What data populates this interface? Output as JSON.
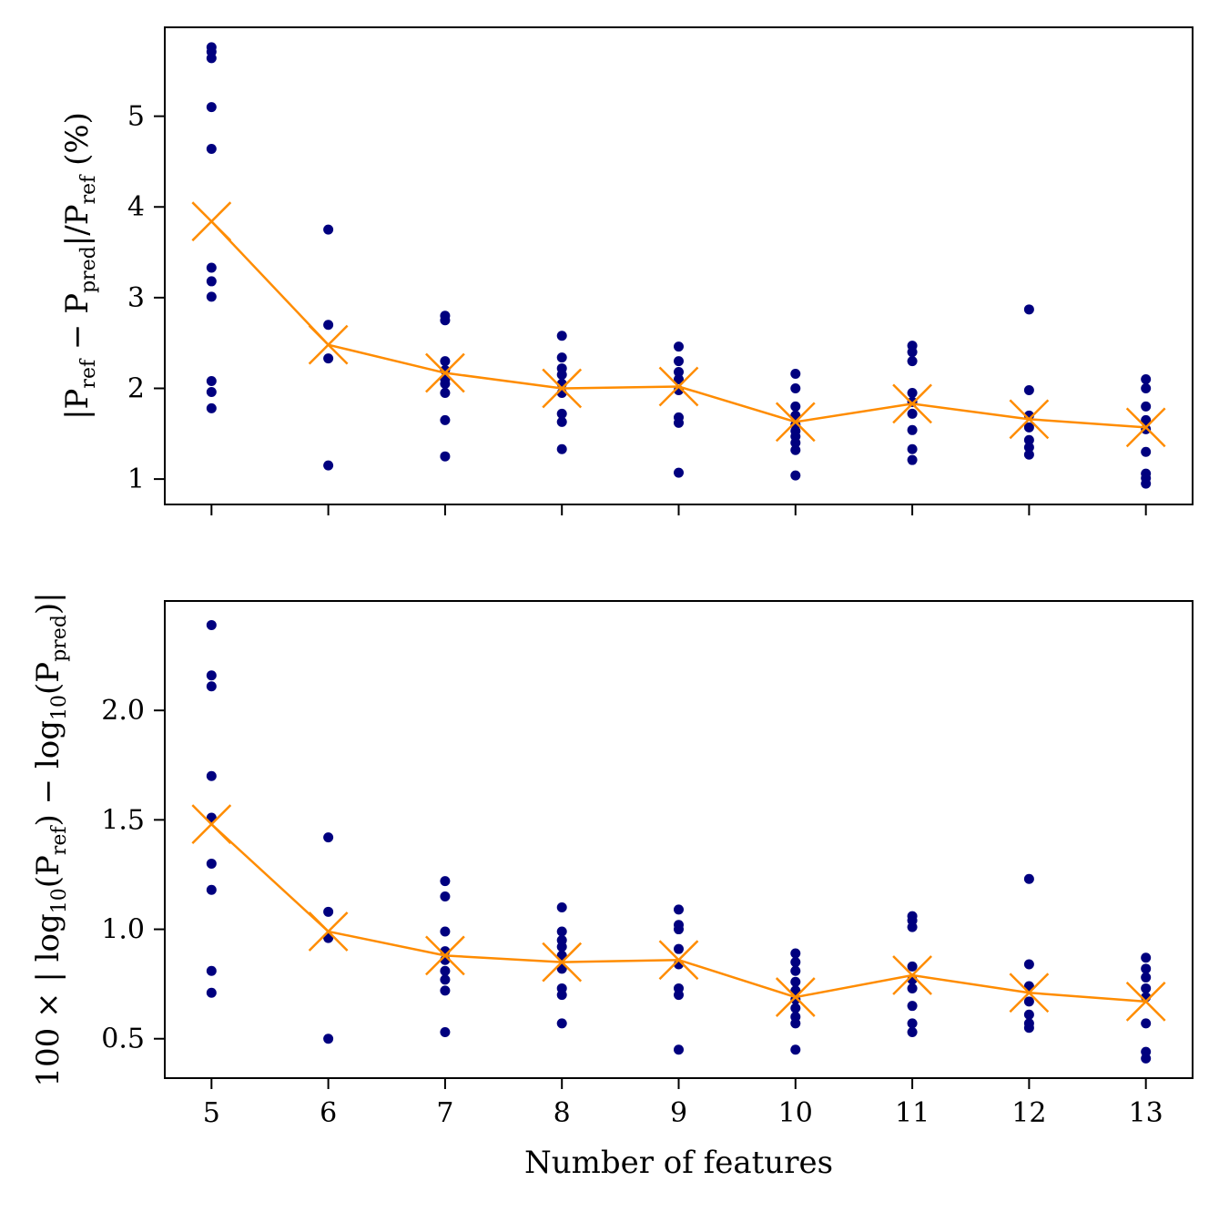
{
  "colors": {
    "points": "#00007f",
    "mean": "#ff8c00"
  },
  "chart_data": [
    {
      "type": "scatter",
      "x": [
        5,
        6,
        7,
        8,
        9,
        10,
        11,
        12,
        13
      ],
      "x_ticks": [
        "5",
        "6",
        "7",
        "8",
        "9",
        "10",
        "11",
        "12",
        "13"
      ],
      "show_x_tick_labels": false,
      "y_ticks": [
        1,
        2,
        3,
        4,
        5
      ],
      "y_tick_labels": [
        "1",
        "2",
        "3",
        "4",
        "5"
      ],
      "ylim": [
        0.72,
        5.98
      ],
      "xlim": [
        4.6,
        13.4
      ],
      "ylabel_parts": [
        "|P",
        "ref",
        " − P",
        "pred",
        "|/P",
        "ref",
        " (%)"
      ],
      "points": [
        [
          1.78,
          1.96,
          2.08,
          3.01,
          3.18,
          3.33,
          4.64,
          5.1,
          5.64,
          5.71,
          5.76
        ],
        [
          1.15,
          2.33,
          2.7,
          3.75
        ],
        [
          1.25,
          1.65,
          1.95,
          2.05,
          2.1,
          2.2,
          2.3,
          2.75,
          2.8
        ],
        [
          1.33,
          1.63,
          1.72,
          1.95,
          2.05,
          2.15,
          2.22,
          2.34,
          2.58
        ],
        [
          1.07,
          1.62,
          1.68,
          1.98,
          2.1,
          2.18,
          2.3,
          2.46
        ],
        [
          1.04,
          1.32,
          1.4,
          1.47,
          1.53,
          1.6,
          1.7,
          1.8,
          2.0,
          2.16
        ],
        [
          1.21,
          1.33,
          1.54,
          1.72,
          1.85,
          1.95,
          2.3,
          2.4,
          2.47
        ],
        [
          1.27,
          1.35,
          1.43,
          1.57,
          1.7,
          1.98,
          2.87
        ],
        [
          0.95,
          1.01,
          1.06,
          1.3,
          1.55,
          1.65,
          1.8,
          2.0,
          2.1
        ]
      ],
      "mean": [
        3.84,
        2.48,
        2.17,
        2.0,
        2.02,
        1.63,
        1.83,
        1.66,
        1.57
      ]
    },
    {
      "type": "scatter",
      "x": [
        5,
        6,
        7,
        8,
        9,
        10,
        11,
        12,
        13
      ],
      "x_ticks": [
        "5",
        "6",
        "7",
        "8",
        "9",
        "10",
        "11",
        "12",
        "13"
      ],
      "show_x_tick_labels": true,
      "y_ticks": [
        0.5,
        1.0,
        1.5,
        2.0
      ],
      "y_tick_labels": [
        "0.5",
        "1.0",
        "1.5",
        "2.0"
      ],
      "ylim": [
        0.32,
        2.5
      ],
      "xlim": [
        4.6,
        13.4
      ],
      "xlabel": "Number of features",
      "ylabel_parts": [
        "100 × | log",
        "10",
        "(P",
        "ref",
        ") − log",
        "10",
        "(P",
        "pred",
        ")|"
      ],
      "points": [
        [
          0.71,
          0.81,
          1.18,
          1.3,
          1.51,
          1.7,
          2.11,
          2.16,
          2.39
        ],
        [
          0.5,
          0.96,
          1.08,
          1.42
        ],
        [
          0.53,
          0.72,
          0.77,
          0.81,
          0.86,
          0.9,
          0.99,
          1.15,
          1.22
        ],
        [
          0.57,
          0.7,
          0.73,
          0.82,
          0.88,
          0.92,
          0.95,
          0.99,
          1.1
        ],
        [
          0.45,
          0.7,
          0.73,
          0.84,
          0.91,
          1.0,
          1.02,
          1.09
        ],
        [
          0.45,
          0.57,
          0.6,
          0.64,
          0.68,
          0.72,
          0.76,
          0.81,
          0.85,
          0.89
        ],
        [
          0.53,
          0.57,
          0.65,
          0.73,
          0.77,
          0.83,
          1.01,
          1.04,
          1.06
        ],
        [
          0.55,
          0.57,
          0.61,
          0.67,
          0.74,
          0.84,
          1.23
        ],
        [
          0.41,
          0.44,
          0.57,
          0.69,
          0.73,
          0.78,
          0.82,
          0.87
        ]
      ],
      "mean": [
        1.48,
        0.99,
        0.88,
        0.85,
        0.86,
        0.69,
        0.79,
        0.71,
        0.67
      ]
    }
  ]
}
